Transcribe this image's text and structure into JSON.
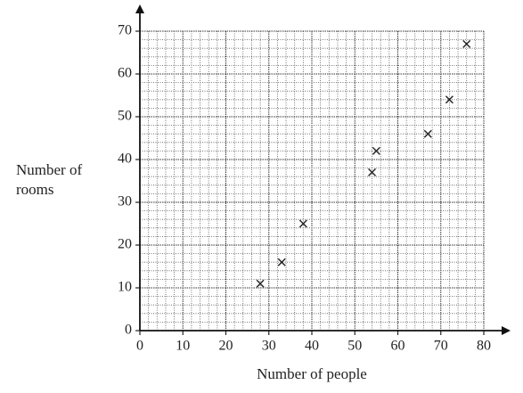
{
  "chart_data": {
    "type": "scatter",
    "x_label": "Number of people",
    "y_label": "Number of rooms",
    "series": [
      {
        "name": null,
        "color": "#222222",
        "x": [
          28,
          33,
          38,
          54,
          55,
          67,
          72,
          76
        ],
        "values": [
          11,
          16,
          25,
          37,
          42,
          46,
          54,
          67
        ]
      }
    ],
    "xlim": [
      0,
      80
    ],
    "ylim": [
      0,
      70
    ],
    "xticks": [
      0,
      10,
      20,
      30,
      40,
      50,
      60,
      70,
      80
    ],
    "yticks": [
      0,
      10,
      20,
      30,
      40,
      50,
      60,
      70
    ],
    "grid": true
  }
}
